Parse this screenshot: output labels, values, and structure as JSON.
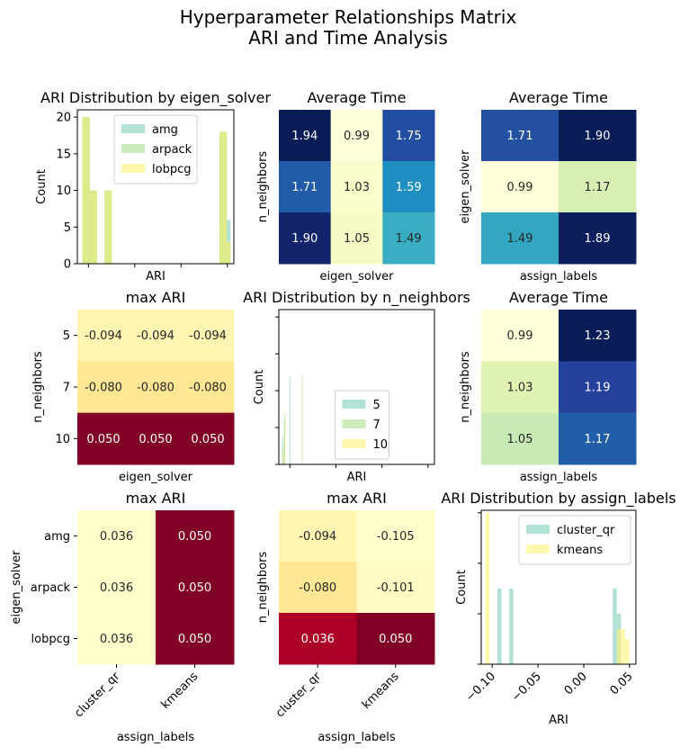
{
  "figure": {
    "title_line1": "Hyperparameter Relationships Matrix",
    "title_line2": "ARI and Time Analysis"
  },
  "chart_data": [
    {
      "id": "p1",
      "type": "histogram",
      "title": "ARI Distribution by eigen_solver",
      "xlabel": "ARI",
      "ylabel": "Count",
      "xlim": [
        -0.112,
        0.057
      ],
      "ylim": [
        0,
        21
      ],
      "yticks": [
        0,
        5,
        10,
        15,
        20
      ],
      "xticks": [
        -0.1,
        -0.05,
        0.0,
        0.05
      ],
      "xtick_labels_visible": false,
      "legend": {
        "position": "upper-center",
        "entries": [
          "amg",
          "arpack",
          "lobpcg"
        ]
      },
      "series": [
        {
          "name": "amg",
          "color": "#7fcdbb",
          "bars": [
            {
              "x0": -0.1066,
              "x1": -0.0986,
              "count": 20
            },
            {
              "x0": -0.0986,
              "x1": -0.0906,
              "count": 10
            },
            {
              "x0": -0.0826,
              "x1": -0.0746,
              "count": 10
            },
            {
              "x0": 0.0414,
              "x1": 0.0494,
              "count": 18
            },
            {
              "x0": 0.0494,
              "x1": 0.0534,
              "count": 6
            }
          ]
        },
        {
          "name": "arpack",
          "color": "#addd8e",
          "bars": [
            {
              "x0": -0.1066,
              "x1": -0.0986,
              "count": 20
            },
            {
              "x0": -0.0986,
              "x1": -0.0906,
              "count": 10
            },
            {
              "x0": -0.0826,
              "x1": -0.0746,
              "count": 10
            },
            {
              "x0": 0.0414,
              "x1": 0.0494,
              "count": 18
            },
            {
              "x0": 0.0494,
              "x1": 0.0534,
              "count": 3
            }
          ]
        },
        {
          "name": "lobpcg",
          "color": "#fff176",
          "bars": [
            {
              "x0": -0.1066,
              "x1": -0.0986,
              "count": 20
            },
            {
              "x0": -0.0986,
              "x1": -0.0906,
              "count": 10
            },
            {
              "x0": -0.0826,
              "x1": -0.0746,
              "count": 10
            },
            {
              "x0": 0.0414,
              "x1": 0.0494,
              "count": 18
            },
            {
              "x0": 0.0494,
              "x1": 0.0534,
              "count": 3
            }
          ]
        }
      ]
    },
    {
      "id": "p2",
      "type": "heatmap",
      "cmap": "YlGnBu",
      "title": "Average Time",
      "xlabel": "eigen_solver",
      "ylabel": "n_neighbors",
      "x_tick_labels": [],
      "y_tick_labels": [],
      "vmin": 0.99,
      "vmax": 1.94,
      "values": [
        [
          1.94,
          0.99,
          1.75
        ],
        [
          1.71,
          1.03,
          1.59
        ],
        [
          1.9,
          1.05,
          1.49
        ]
      ],
      "labels": [
        [
          "1.94",
          "0.99",
          "1.75"
        ],
        [
          "1.71",
          "1.03",
          "1.59"
        ],
        [
          "1.90",
          "1.05",
          "1.49"
        ]
      ]
    },
    {
      "id": "p3",
      "type": "heatmap",
      "cmap": "YlGnBu",
      "title": "Average Time",
      "xlabel": "assign_labels",
      "ylabel": "eigen_solver",
      "x_tick_labels": [],
      "y_tick_labels": [],
      "vmin": 0.99,
      "vmax": 1.9,
      "values": [
        [
          1.71,
          1.9
        ],
        [
          0.99,
          1.17
        ],
        [
          1.49,
          1.89
        ]
      ],
      "labels": [
        [
          "1.71",
          "1.90"
        ],
        [
          "0.99",
          "1.17"
        ],
        [
          "1.49",
          "1.89"
        ]
      ]
    },
    {
      "id": "p4",
      "type": "heatmap",
      "cmap": "YlOrRd",
      "title": "max ARI",
      "xlabel": "eigen_solver",
      "ylabel": "n_neighbors",
      "x_tick_labels": [],
      "y_tick_labels": [
        "5",
        "7",
        "10"
      ],
      "vmin": -0.105,
      "vmax": 0.05,
      "values": [
        [
          -0.094,
          -0.094,
          -0.094
        ],
        [
          -0.08,
          -0.08,
          -0.08
        ],
        [
          0.05,
          0.05,
          0.05
        ]
      ],
      "labels": [
        [
          "-0.094",
          "-0.094",
          "-0.094"
        ],
        [
          "-0.080",
          "-0.080",
          "-0.080"
        ],
        [
          "0.050",
          "0.050",
          "0.050"
        ]
      ]
    },
    {
      "id": "p5",
      "type": "histogram",
      "title": "ARI Distribution by n_neighbors",
      "xlabel": "ARI",
      "ylabel": "Count",
      "xlim": [
        -0.112,
        0.057
      ],
      "ylim": [
        0,
        21
      ],
      "yticks": [
        0,
        5,
        10,
        15,
        20
      ],
      "ytick_labels_visible": false,
      "xticks": [
        -0.1,
        -0.05,
        0.0,
        0.05
      ],
      "xtick_labels_visible": false,
      "legend": {
        "position": "lower-center",
        "entries": [
          "5",
          "7",
          "10"
        ]
      },
      "series": [
        {
          "name": "5",
          "color": "#7fcdbb",
          "bars": [
            {
              "x0": -0.1085,
              "x1": -0.108,
              "count": 3
            },
            {
              "x0": -0.1065,
              "x1": -0.106,
              "count": 6
            },
            {
              "x0": -0.1005,
              "x1": -0.1,
              "count": 12
            }
          ]
        },
        {
          "name": "7",
          "color": "#addd8e",
          "bars": [
            {
              "x0": -0.108,
              "x1": -0.1075,
              "count": 4
            },
            {
              "x0": -0.106,
              "x1": -0.1055,
              "count": 7
            },
            {
              "x0": -0.087,
              "x1": -0.0865,
              "count": 12
            }
          ]
        },
        {
          "name": "10",
          "color": "#fff176",
          "bars": [
            {
              "x0": -0.1075,
              "x1": -0.107,
              "count": 2
            },
            {
              "x0": -0.1055,
              "x1": -0.105,
              "count": 6
            }
          ]
        }
      ]
    },
    {
      "id": "p6",
      "type": "heatmap",
      "cmap": "YlGnBu",
      "title": "Average Time",
      "xlabel": "assign_labels",
      "ylabel": "n_neighbors",
      "x_tick_labels": [],
      "y_tick_labels": [],
      "vmin": 0.99,
      "vmax": 1.23,
      "values": [
        [
          0.99,
          1.23
        ],
        [
          1.03,
          1.19
        ],
        [
          1.05,
          1.17
        ]
      ],
      "labels": [
        [
          "0.99",
          "1.23"
        ],
        [
          "1.03",
          "1.19"
        ],
        [
          "1.05",
          "1.17"
        ]
      ]
    },
    {
      "id": "p7",
      "type": "heatmap",
      "cmap": "YlOrRd",
      "title": "max ARI",
      "xlabel": "assign_labels",
      "ylabel": "eigen_solver",
      "x_tick_labels": [
        "cluster_qr",
        "kmeans"
      ],
      "y_tick_labels": [
        "amg",
        "arpack",
        "lobpcg"
      ],
      "vmin": 0.036,
      "vmax": 0.05,
      "values": [
        [
          0.036,
          0.05
        ],
        [
          0.036,
          0.05
        ],
        [
          0.036,
          0.05
        ]
      ],
      "labels": [
        [
          "0.036",
          "0.050"
        ],
        [
          "0.036",
          "0.050"
        ],
        [
          "0.036",
          "0.050"
        ]
      ]
    },
    {
      "id": "p8",
      "type": "heatmap",
      "cmap": "YlOrRd",
      "title": "max ARI",
      "xlabel": "assign_labels",
      "ylabel": "n_neighbors",
      "x_tick_labels": [
        "cluster_qr",
        "kmeans"
      ],
      "y_tick_labels": [],
      "vmin": -0.105,
      "vmax": 0.05,
      "values": [
        [
          -0.094,
          -0.105
        ],
        [
          -0.08,
          -0.101
        ],
        [
          0.036,
          0.05
        ]
      ],
      "labels": [
        [
          "-0.094",
          "-0.105"
        ],
        [
          "-0.080",
          "-0.101"
        ],
        [
          "0.036",
          "0.050"
        ]
      ]
    },
    {
      "id": "p9",
      "type": "histogram",
      "title": "ARI Distribution by assign_labels",
      "xlabel": "ARI",
      "ylabel": "Count",
      "xlim": [
        -0.112,
        0.057
      ],
      "ylim": [
        0,
        30.5
      ],
      "yticks": [
        0,
        10,
        20,
        30
      ],
      "ytick_labels_visible": false,
      "xticks": [
        -0.1,
        -0.05,
        0.0,
        0.05
      ],
      "xtick_labels": [
        "−0.10",
        "−0.05",
        "0.00",
        "0.05"
      ],
      "xtick_labels_visible": true,
      "legend": {
        "position": "upper-right",
        "entries": [
          "cluster_qr",
          "kmeans"
        ]
      },
      "series": [
        {
          "name": "cluster_qr",
          "color": "#7fcdbb",
          "bars": [
            {
              "x0": -0.0944,
              "x1": -0.0899,
              "count": 15
            },
            {
              "x0": -0.0814,
              "x1": -0.0769,
              "count": 15
            },
            {
              "x0": 0.0316,
              "x1": 0.0361,
              "count": 15
            },
            {
              "x0": 0.0361,
              "x1": 0.0406,
              "count": 10
            }
          ]
        },
        {
          "name": "kmeans",
          "color": "#fff176",
          "bars": [
            {
              "x0": -0.1074,
              "x1": -0.1029,
              "count": 30
            },
            {
              "x0": 0.0361,
              "x1": 0.0451,
              "count": 7
            },
            {
              "x0": 0.0451,
              "x1": 0.0496,
              "count": 5
            }
          ]
        }
      ]
    }
  ]
}
